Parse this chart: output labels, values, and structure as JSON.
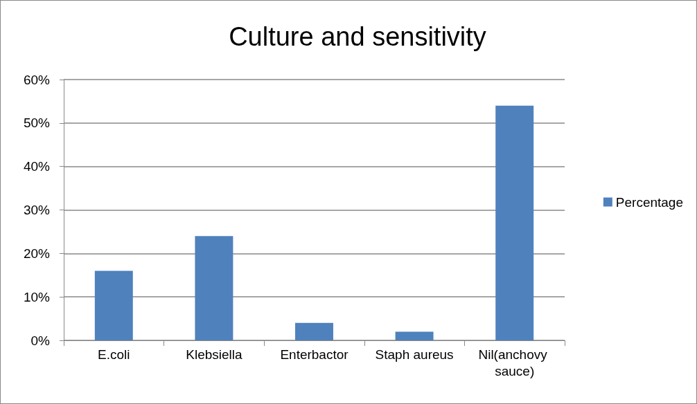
{
  "chart_data": {
    "type": "bar",
    "title": "Culture and sensitivity",
    "categories": [
      "E.coli",
      "Klebsiella",
      "Enterbactor",
      "Staph aureus",
      "Nil(anchovy sauce)"
    ],
    "series": [
      {
        "name": "Percentage",
        "color": "#4f81bd",
        "values": [
          16,
          24,
          4,
          2,
          54
        ]
      }
    ],
    "ylim": [
      0,
      60
    ],
    "yticks": [
      {
        "value": 0,
        "label": "0%"
      },
      {
        "value": 10,
        "label": "10%"
      },
      {
        "value": 20,
        "label": "20%"
      },
      {
        "value": 30,
        "label": "30%"
      },
      {
        "value": 40,
        "label": "40%"
      },
      {
        "value": 50,
        "label": "50%"
      },
      {
        "value": 60,
        "label": "60%"
      }
    ],
    "grid": "y",
    "legend": "right"
  }
}
